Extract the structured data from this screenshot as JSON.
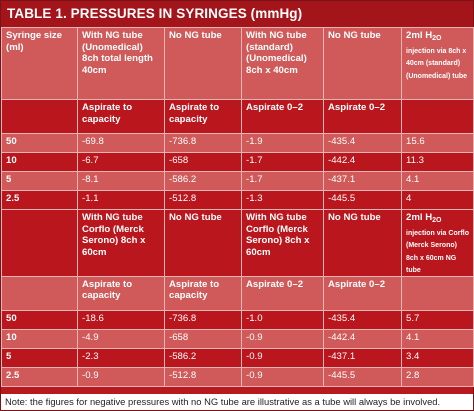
{
  "title": "TABLE 1.  PRESSURES IN SYRINGES (mmHg)",
  "section1": {
    "headers": [
      "Syringe size (ml)",
      "With NG tube (Unomedical) 8ch total length 40cm",
      "No NG tube",
      "With NG tube (standard) (Unomedical) 8ch x 40cm",
      "No NG tube",
      "2ml H",
      "2O injection via 8ch x 40cm (standard) (Unomedical) tube"
    ],
    "subheaders": [
      "",
      "Aspirate to capacity",
      "Aspirate to capacity",
      "Aspirate 0–2",
      "Aspirate 0–2",
      ""
    ],
    "rows": [
      [
        "50",
        "-69.8",
        "-736.8",
        "-1.9",
        "-435.4",
        "15.6"
      ],
      [
        "10",
        "-6.7",
        "-658",
        "-1.7",
        "-442.4",
        "11.3"
      ],
      [
        "5",
        "-8.1",
        "-586.2",
        "-1.7",
        "-437.1",
        "4.1"
      ],
      [
        "2.5",
        "-1.1",
        "-512.8",
        "-1.3",
        "-445.5",
        "4"
      ]
    ]
  },
  "section2": {
    "headers": [
      "",
      "With NG tube Corflo (Merck Serono) 8ch x 60cm",
      "No NG tube",
      "With NG tube Corflo (Merck Serono) 8ch x 60cm",
      "No NG tube",
      "2ml H",
      "2O injection via Corflo (Merck Serono) 8ch x 60cm NG tube"
    ],
    "subheaders": [
      "",
      "Aspirate to capacity",
      "Aspirate to capacity",
      "Aspirate 0–2",
      "Aspirate 0–2",
      ""
    ],
    "rows": [
      [
        "50",
        "-18.6",
        "-736.8",
        "-1.0",
        "-435.4",
        "5.7"
      ],
      [
        "10",
        "-4.9",
        "-658",
        "-0.9",
        "-442.4",
        "4.1"
      ],
      [
        "5",
        "-2.3",
        "-586.2",
        "-0.9",
        "-437.1",
        "3.4"
      ],
      [
        "2.5",
        "-0.9",
        "-512.8",
        "-0.9",
        "-445.5",
        "2.8"
      ]
    ]
  },
  "note": "Note: the figures for negative pressures with no NG tube are illustrative as a tube will always be involved.",
  "colors": {
    "dark": "#b9161d",
    "light": "#cf5a59",
    "title": "#a3151b"
  }
}
